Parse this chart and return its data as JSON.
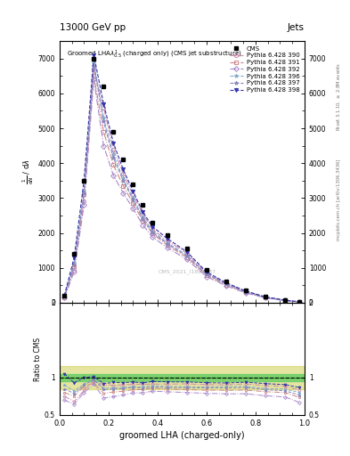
{
  "title_top": "13000 GeV pp",
  "title_right": "Jets",
  "plot_title": "Groomed LHA$\\lambda^{1}_{0.5}$ (charged only) (CMS jet substructure)",
  "xlabel": "groomed LHA (charged-only)",
  "ylabel_main_parts": [
    "$\\mathrm{d}N$",
    "$\\mathrm{d}\\lambda$",
    "$\\mathrm{d}N_{\\lambda}$"
  ],
  "ylabel_ratio": "Ratio to CMS",
  "right_label_top": "Rivet 3.1.10, $\\geq$ 2.8M events",
  "right_label_bot": "mcplots.cern.ch [arXiv:1306.3436]",
  "watermark": "CMS_2021_I1894187",
  "x_bins": [
    0.0,
    0.04,
    0.08,
    0.12,
    0.16,
    0.2,
    0.24,
    0.28,
    0.32,
    0.36,
    0.4,
    0.48,
    0.56,
    0.64,
    0.72,
    0.8,
    0.88,
    0.96,
    1.0
  ],
  "cms_data": [
    200,
    1400,
    3500,
    7000,
    6200,
    4900,
    4100,
    3400,
    2800,
    2300,
    1950,
    1550,
    950,
    620,
    360,
    185,
    85,
    30
  ],
  "mc_390": [
    150,
    950,
    2900,
    6700,
    5600,
    4400,
    3700,
    3100,
    2550,
    2100,
    1780,
    1420,
    860,
    560,
    330,
    165,
    75,
    25
  ],
  "mc_391": [
    160,
    1050,
    3100,
    6500,
    4900,
    3950,
    3350,
    2850,
    2350,
    1980,
    1650,
    1300,
    790,
    515,
    300,
    150,
    68,
    22
  ],
  "mc_392": [
    140,
    900,
    2800,
    6400,
    4500,
    3650,
    3150,
    2700,
    2230,
    1880,
    1580,
    1240,
    750,
    485,
    282,
    140,
    63,
    20
  ],
  "mc_396": [
    180,
    1150,
    3200,
    6900,
    5300,
    4250,
    3560,
    3000,
    2450,
    2050,
    1720,
    1360,
    830,
    545,
    318,
    158,
    72,
    24
  ],
  "mc_397": [
    170,
    1100,
    3150,
    6800,
    5200,
    4150,
    3500,
    2950,
    2410,
    2010,
    1690,
    1340,
    820,
    535,
    312,
    155,
    70,
    23
  ],
  "mc_398": [
    210,
    1300,
    3500,
    7100,
    5700,
    4580,
    3820,
    3200,
    2600,
    2180,
    1840,
    1460,
    885,
    575,
    338,
    170,
    77,
    26
  ],
  "series_styles": [
    {
      "label": "Pythia 6.428 390",
      "color": "#cc88aa",
      "marker": "o",
      "ls": "-."
    },
    {
      "label": "Pythia 6.428 391",
      "color": "#cc8888",
      "marker": "s",
      "ls": "-."
    },
    {
      "label": "Pythia 6.428 392",
      "color": "#aa88cc",
      "marker": "D",
      "ls": "-."
    },
    {
      "label": "Pythia 6.428 396",
      "color": "#88aacc",
      "marker": "*",
      "ls": "--"
    },
    {
      "label": "Pythia 6.428 397",
      "color": "#8888bb",
      "marker": "*",
      "ls": "--"
    },
    {
      "label": "Pythia 6.428 398",
      "color": "#3333aa",
      "marker": "v",
      "ls": "--"
    }
  ],
  "ylim_main": [
    0,
    7500
  ],
  "yticks_main": [
    0,
    1000,
    2000,
    3000,
    4000,
    5000,
    6000,
    7000
  ],
  "ylim_ratio": [
    0.5,
    2.0
  ],
  "ratio_yticks": [
    0.5,
    1.0,
    2.0
  ],
  "ratio_yticklabels": [
    "0.5",
    "1",
    "2"
  ],
  "background_color": "#ffffff",
  "green_band_color": "#66cc66",
  "yellow_band_color": "#cccc44"
}
